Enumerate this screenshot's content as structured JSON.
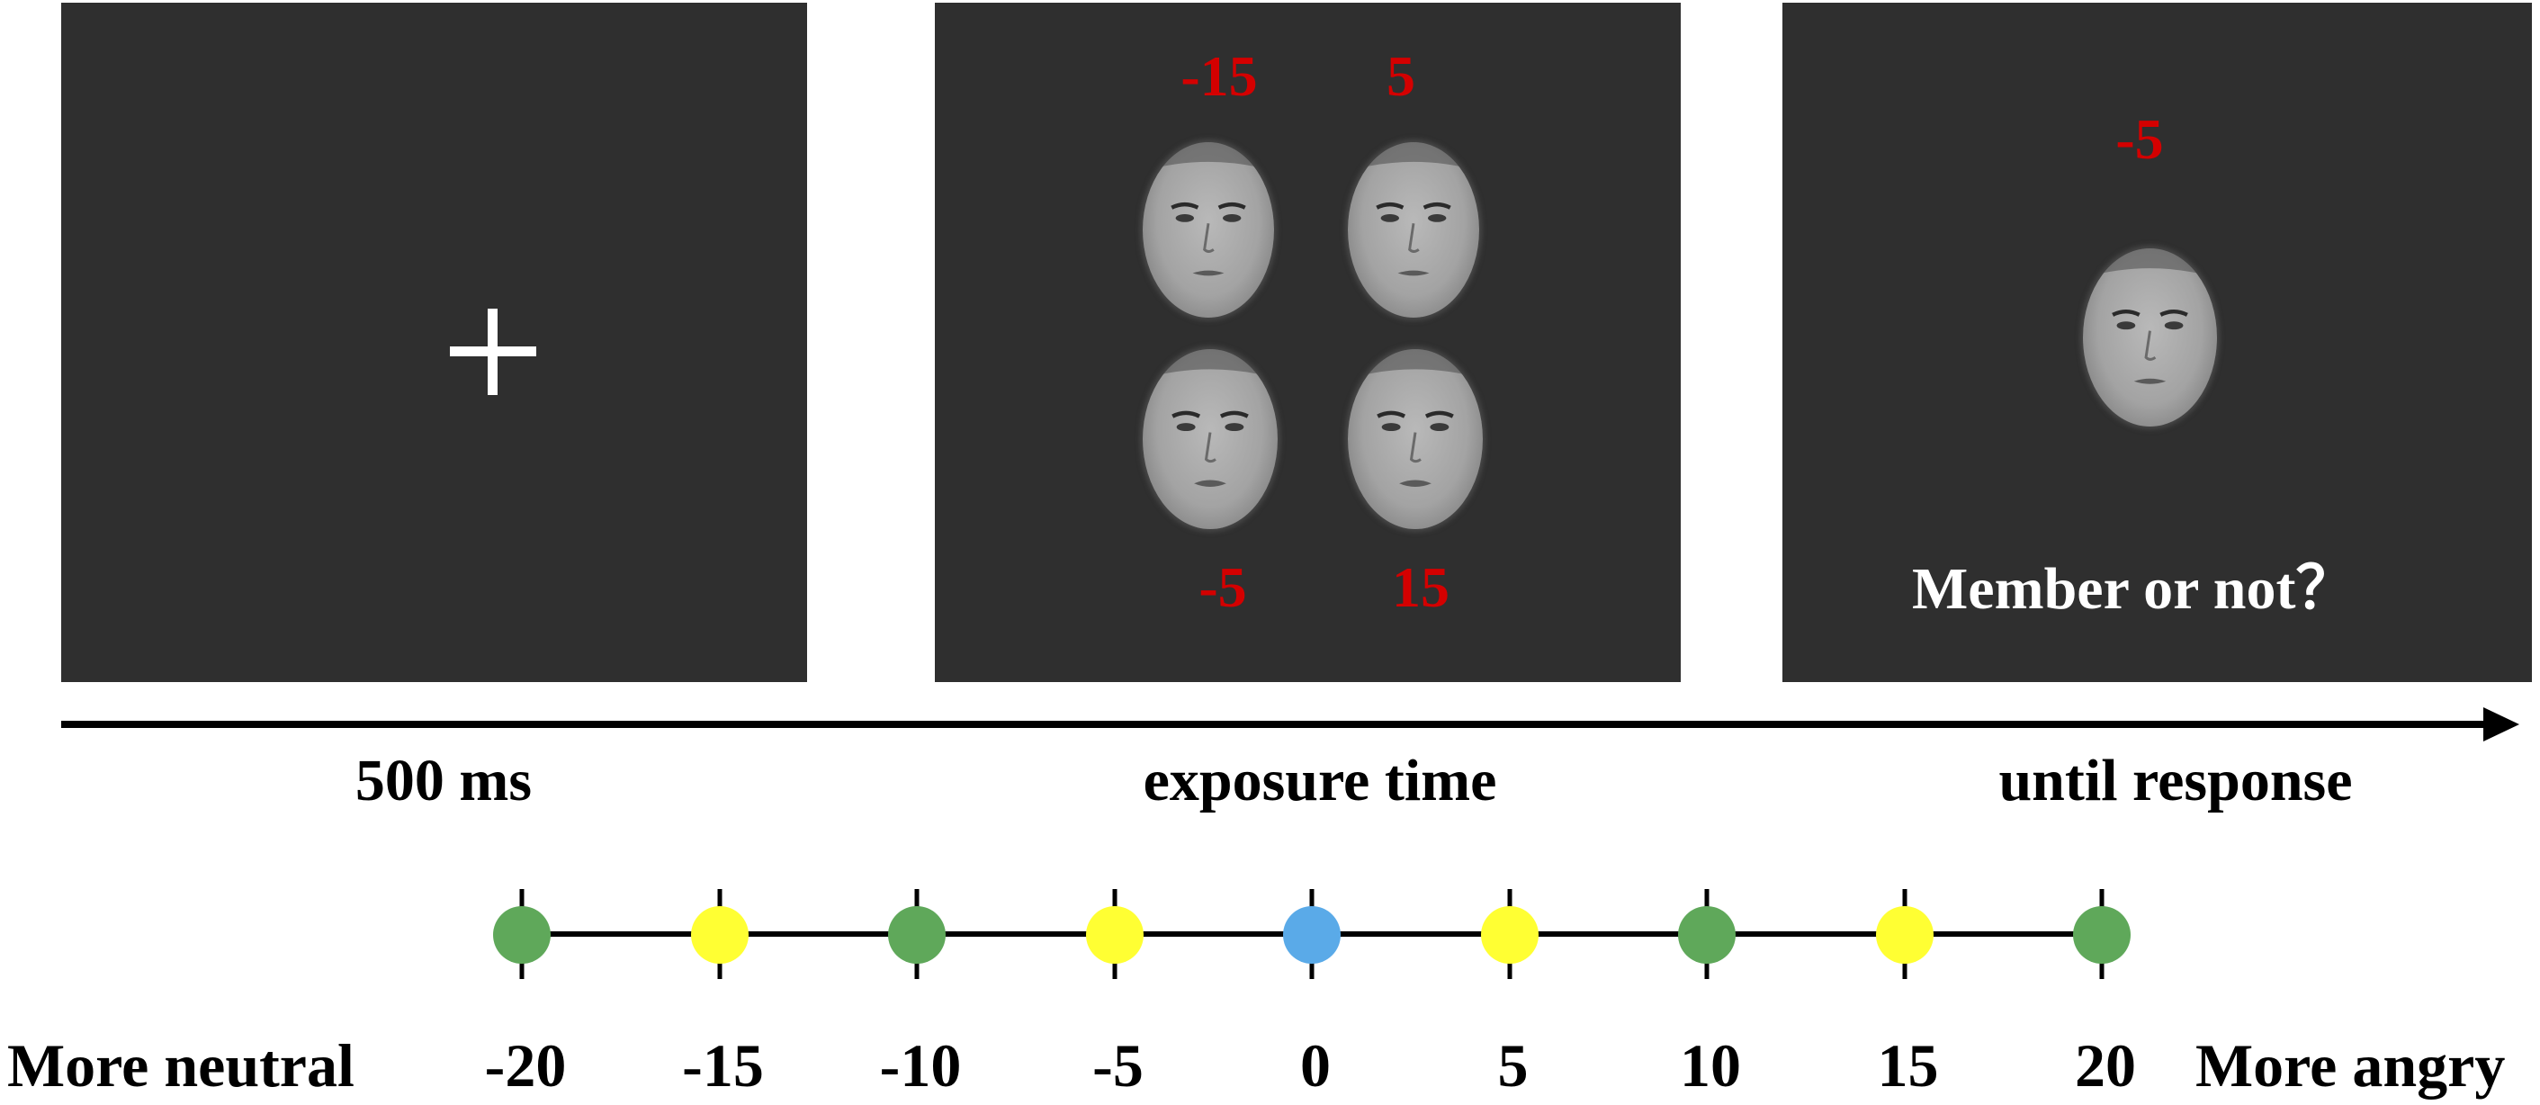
{
  "panels": {
    "fixation": {
      "symbol": "fixation-cross"
    },
    "exposure": {
      "numbers": [
        "-15",
        "5",
        "-5",
        "15"
      ]
    },
    "probe": {
      "number": "-5",
      "question": "Member or not？"
    }
  },
  "timeline": {
    "labels": [
      "500 ms",
      "exposure time",
      "until response"
    ]
  },
  "scale": {
    "left_label": "More neutral",
    "right_label": "More angry",
    "points": [
      {
        "value": "-20",
        "color": "#5fa85a"
      },
      {
        "value": "-15",
        "color": "#ffff33"
      },
      {
        "value": "-10",
        "color": "#5fa85a"
      },
      {
        "value": "-5",
        "color": "#ffff33"
      },
      {
        "value": "0",
        "color": "#5aaae8"
      },
      {
        "value": "5",
        "color": "#ffff33"
      },
      {
        "value": "10",
        "color": "#5fa85a"
      },
      {
        "value": "15",
        "color": "#ffff33"
      },
      {
        "value": "20",
        "color": "#5fa85a"
      }
    ]
  },
  "colors": {
    "panel_background": "#2f2f2f",
    "number_red": "#d40000",
    "neutral_green": "#5fa85a",
    "midpoint_blue": "#5aaae8",
    "intermediate_yellow": "#ffff33"
  }
}
